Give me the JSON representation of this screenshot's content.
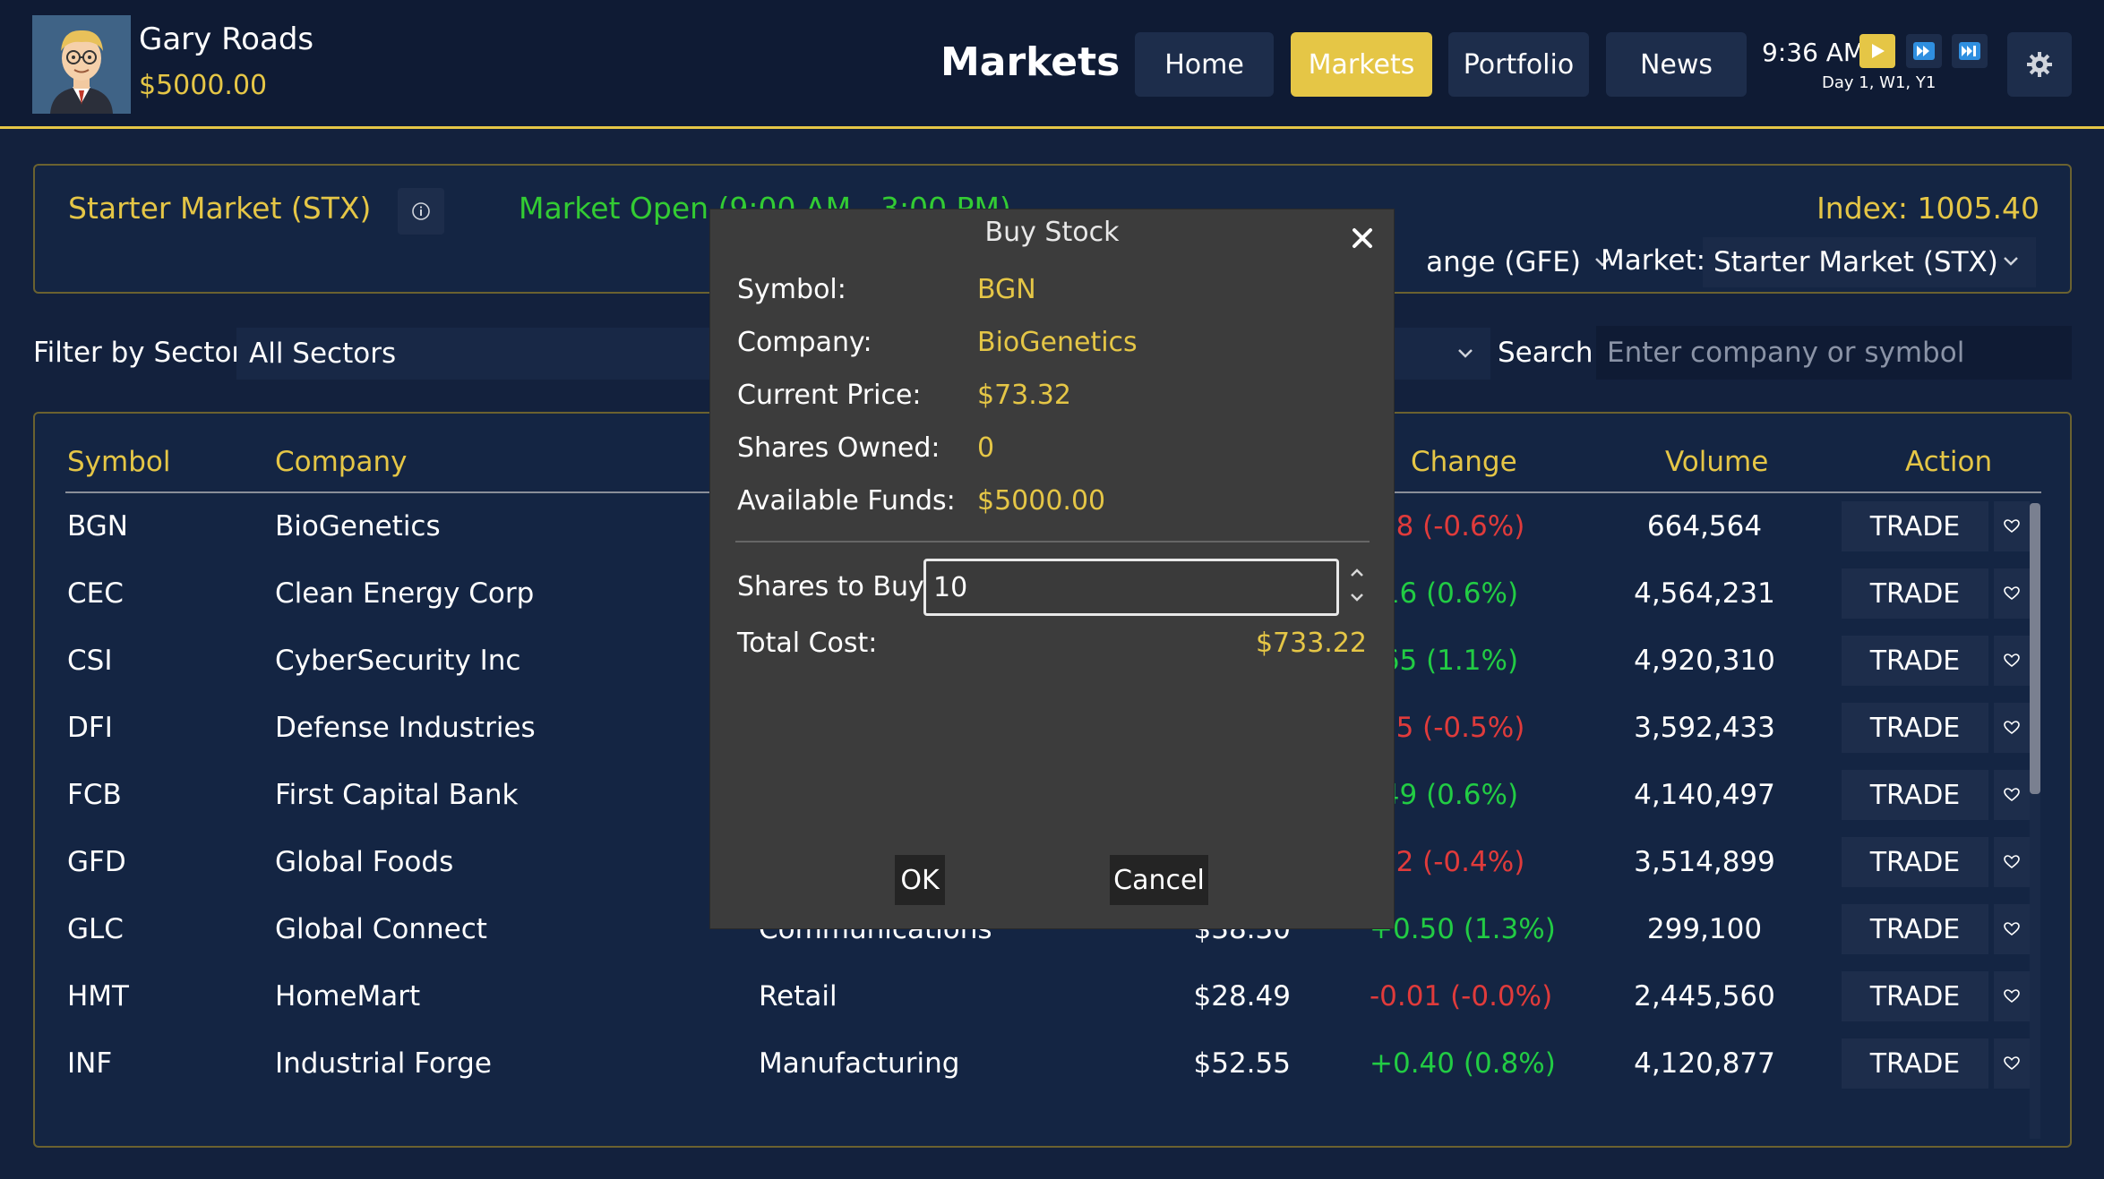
{
  "player": {
    "name": "Gary Roads",
    "funds": "$5000.00"
  },
  "header": {
    "title": "Markets",
    "nav": [
      {
        "label": "Home",
        "active": false
      },
      {
        "label": "Markets",
        "active": true
      },
      {
        "label": "Portfolio",
        "active": false
      },
      {
        "label": "News",
        "active": false
      }
    ],
    "clock": {
      "time": "9:36 AM",
      "date": "Day 1, W1, Y1"
    },
    "speed_controls": [
      "play-icon",
      "fast-forward-icon",
      "skip-forward-icon"
    ],
    "settings_icon": "gear-icon"
  },
  "market_panel": {
    "name": "Starter Market (STX)",
    "status": "Market Open (9:00 AM - 3:00 PM)",
    "index": "Index: 1005.40",
    "exchange_value": "ange (GFE)",
    "market_label": "Market:",
    "market_value": "Starter Market (STX)"
  },
  "filter": {
    "sector_label": "Filter by Sector:",
    "sector_value": "All Sectors",
    "search_label": "Search:",
    "search_placeholder": "Enter company or symbol"
  },
  "table": {
    "columns": {
      "symbol": "Symbol",
      "company": "Company",
      "change": "Change",
      "volume": "Volume",
      "action": "Action"
    },
    "rows": [
      {
        "symbol": "BGN",
        "company": "BioGenetics",
        "sector": "",
        "price": "",
        "change": ".48 (-0.6%)",
        "dir": "neg",
        "volume": "664,564",
        "action": "TRADE"
      },
      {
        "symbol": "CEC",
        "company": "Clean Energy Corp",
        "sector": "",
        "price": "",
        "change": ".16 (0.6%)",
        "dir": "pos",
        "volume": "4,564,231",
        "action": "TRADE"
      },
      {
        "symbol": "CSI",
        "company": "CyberSecurity Inc",
        "sector": "",
        "price": "",
        "change": ".65 (1.1%)",
        "dir": "pos",
        "volume": "4,920,310",
        "action": "TRADE"
      },
      {
        "symbol": "DFI",
        "company": "Defense Industries",
        "sector": "",
        "price": "",
        "change": ".35 (-0.5%)",
        "dir": "neg",
        "volume": "3,592,433",
        "action": "TRADE"
      },
      {
        "symbol": "FCB",
        "company": "First Capital Bank",
        "sector": "",
        "price": "",
        "change": ".49 (0.6%)",
        "dir": "pos",
        "volume": "4,140,497",
        "action": "TRADE"
      },
      {
        "symbol": "GFD",
        "company": "Global Foods",
        "sector": "",
        "price": "",
        "change": ".12 (-0.4%)",
        "dir": "neg",
        "volume": "3,514,899",
        "action": "TRADE"
      },
      {
        "symbol": "GLC",
        "company": "Global Connect",
        "sector": "Communications",
        "price": "$38.30",
        "change": "+0.50 (1.3%)",
        "dir": "pos",
        "volume": "299,100",
        "action": "TRADE"
      },
      {
        "symbol": "HMT",
        "company": "HomeMart",
        "sector": "Retail",
        "price": "$28.49",
        "change": "-0.01 (-0.0%)",
        "dir": "neg",
        "volume": "2,445,560",
        "action": "TRADE"
      },
      {
        "symbol": "INF",
        "company": "Industrial Forge",
        "sector": "Manufacturing",
        "price": "$52.55",
        "change": "+0.40 (0.8%)",
        "dir": "pos",
        "volume": "4,120,877",
        "action": "TRADE"
      }
    ]
  },
  "modal": {
    "title": "Buy Stock",
    "symbol_label": "Symbol:",
    "symbol": "BGN",
    "company_label": "Company:",
    "company": "BioGenetics",
    "price_label": "Current Price:",
    "price": "$73.32",
    "owned_label": "Shares Owned:",
    "owned": "0",
    "funds_label": "Available Funds:",
    "funds": "$5000.00",
    "shares_label": "Shares to Buy:",
    "shares_value": "10",
    "total_label": "Total Cost:",
    "total": "$733.22",
    "ok_label": "OK",
    "cancel_label": "Cancel"
  },
  "colors": {
    "accent_gold": "#e5c646",
    "positive": "#22cc44",
    "negative": "#e03b3b",
    "background": "#13213d"
  }
}
